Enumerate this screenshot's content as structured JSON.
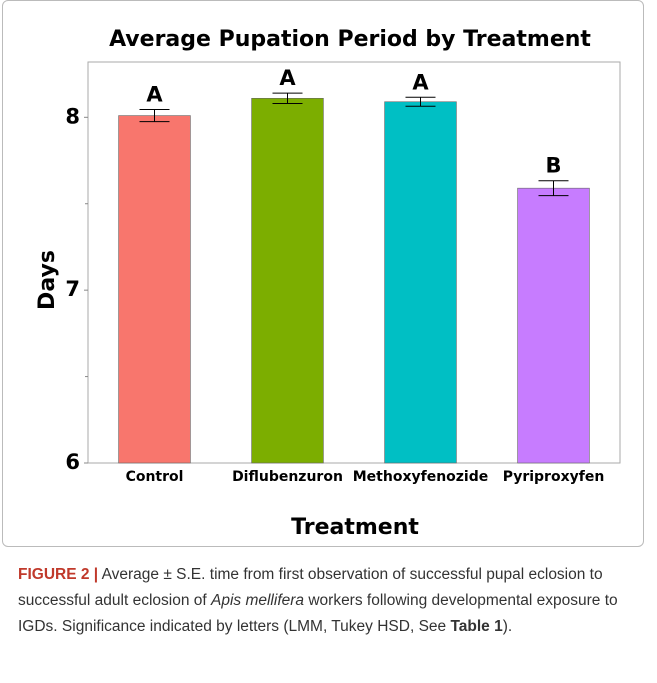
{
  "chart_data": {
    "type": "bar",
    "title": "Average Pupation Period by Treatment",
    "x_label": "Treatment",
    "y_label": "Days",
    "categories": [
      "Control",
      "Diflubenzuron",
      "Methoxyfenozide",
      "Pyriproxyfen"
    ],
    "values": [
      8.01,
      8.11,
      8.09,
      7.59
    ],
    "errors": [
      0.035,
      0.03,
      0.026,
      0.043
    ],
    "annotations": [
      "A",
      "A",
      "A",
      "B"
    ],
    "colors": [
      "#f8766d",
      "#7cae00",
      "#00bfc4",
      "#c77cff"
    ],
    "ylim": [
      6,
      8.32
    ],
    "yticks": [
      6,
      7,
      8
    ],
    "yminorticks": [
      6.5,
      7.5
    ]
  },
  "caption": {
    "parts": [
      {
        "text": "FIGURE 2 |",
        "style": "bold"
      },
      {
        "text": " Average ± S.E. time from first observation of successful pupal eclosion to successful adult eclosion of ",
        "style": "normal"
      },
      {
        "text": "Apis mellifera",
        "style": "italic"
      },
      {
        "text": " workers following developmental exposure to IGDs. Significance indicated by letters (LMM, Tukey HSD, See ",
        "style": "normal"
      },
      {
        "text": "Table 1",
        "style": "bold"
      },
      {
        "text": ").",
        "style": "normal"
      }
    ]
  }
}
